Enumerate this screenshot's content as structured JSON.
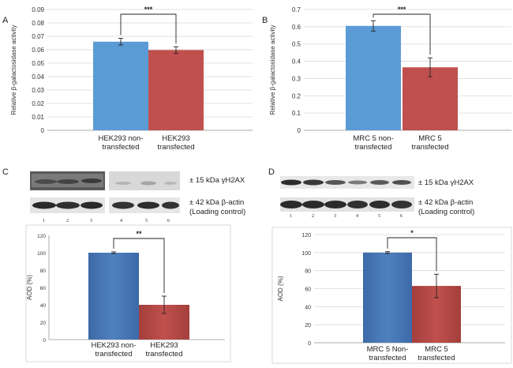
{
  "panels": {
    "A": {
      "letter": "A"
    },
    "B": {
      "letter": "B"
    },
    "C": {
      "letter": "C",
      "blot_labels": [
        "± 15 kDa γH2AX",
        "± 42 kDa β-actin\n(Loading control)"
      ],
      "lanes": [
        "1",
        "2",
        "3",
        "4",
        "5",
        "6"
      ]
    },
    "D": {
      "letter": "D",
      "blot_labels": [
        "± 15 kDa γH2AX",
        "± 42 kDa β-actin\n(Loading control)"
      ],
      "lanes": [
        "1",
        "2",
        "3",
        "4",
        "5",
        "6"
      ]
    }
  },
  "colors": {
    "blue": "#5b9bd5",
    "red": "#c0504d",
    "blue_dark": "#4f81bd",
    "red_dark": "#c0504d"
  },
  "chart_data": [
    {
      "id": "A",
      "type": "bar",
      "categories": [
        "HEK293 non-\ntransfected",
        "HEK293\ntransfected"
      ],
      "values": [
        0.066,
        0.0598
      ],
      "errors": [
        0.0025,
        0.0025
      ],
      "ylabel": "Relative β-galactosidase activity",
      "ylim": [
        0,
        0.09
      ],
      "yticks": [
        "0",
        "0.01",
        "0.02",
        "0.03",
        "0.04",
        "0.05",
        "0.06",
        "0.07",
        "0.08",
        "0.09"
      ],
      "significance": "***",
      "grid": true
    },
    {
      "id": "B",
      "type": "bar",
      "categories": [
        "MRC 5 non-\ntransfected",
        "MRC 5\ntransfected"
      ],
      "values": [
        0.605,
        0.365
      ],
      "errors": [
        0.03,
        0.055
      ],
      "ylabel": "Relative β-galactosidase activity",
      "ylim": [
        0,
        0.7
      ],
      "yticks": [
        "0",
        "0.1",
        "0.2",
        "0.3",
        "0.4",
        "0.5",
        "0.6",
        "0.7"
      ],
      "significance": "***",
      "grid": true
    },
    {
      "id": "C",
      "type": "bar",
      "categories": [
        "HEK293 non-\ntransfected",
        "HEK293\ntransfected"
      ],
      "values": [
        100,
        40
      ],
      "errors": [
        1,
        10
      ],
      "ylabel": "AOD (%)",
      "ylim": [
        0,
        120
      ],
      "yticks": [
        "0",
        "20",
        "40",
        "60",
        "80",
        "100",
        "120"
      ],
      "significance": "**",
      "grid": false
    },
    {
      "id": "D",
      "type": "bar",
      "categories": [
        "MRC 5 Non-\ntransfected",
        "MRC 5\ntransfected"
      ],
      "values": [
        100,
        63
      ],
      "errors": [
        1,
        13
      ],
      "ylabel": "AOD (%)",
      "ylim": [
        0,
        120
      ],
      "yticks": [
        "0",
        "20",
        "40",
        "60",
        "80",
        "100",
        "120"
      ],
      "significance": "*",
      "grid": true
    }
  ]
}
